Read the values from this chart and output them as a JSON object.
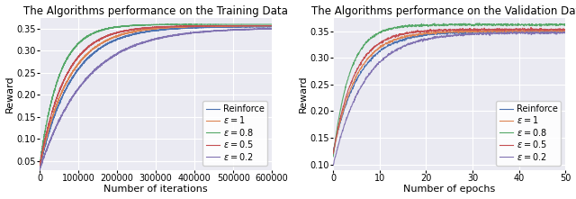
{
  "left_title": "The Algorithms performance on the Training Data",
  "right_title": "The Algorithms performance on the Validation Data",
  "left_xlabel": "Number of iterations",
  "right_xlabel": "Number of epochs",
  "ylabel": "Reward",
  "left_xlim": [
    0,
    600000
  ],
  "right_xlim": [
    0,
    50
  ],
  "left_ylim": [
    0.03,
    0.375
  ],
  "right_ylim": [
    0.09,
    0.375
  ],
  "left_yticks": [
    0.05,
    0.1,
    0.15,
    0.2,
    0.25,
    0.3,
    0.35
  ],
  "right_yticks": [
    0.1,
    0.15,
    0.2,
    0.25,
    0.3,
    0.35
  ],
  "left_xticks": [
    0,
    100000,
    200000,
    300000,
    400000,
    500000,
    600000
  ],
  "left_xticklabels": [
    "0",
    "100000",
    "200000",
    "300000",
    "400000",
    "500000",
    "600000"
  ],
  "right_xticks": [
    0,
    10,
    20,
    30,
    40,
    50
  ],
  "legend_labels": [
    "Reinforce",
    "$\\varepsilon = 1$",
    "$\\varepsilon = 0.8$",
    "$\\varepsilon = 0.5$",
    "$\\varepsilon = 0.2$"
  ],
  "colors": [
    "#4c72b0",
    "#dd8452",
    "#55a868",
    "#c44e52",
    "#8172b2"
  ],
  "bg_color": "#eaeaf2",
  "grid_color": "white",
  "title_fontsize": 8.5,
  "label_fontsize": 8,
  "tick_fontsize": 7,
  "legend_fontsize": 7
}
